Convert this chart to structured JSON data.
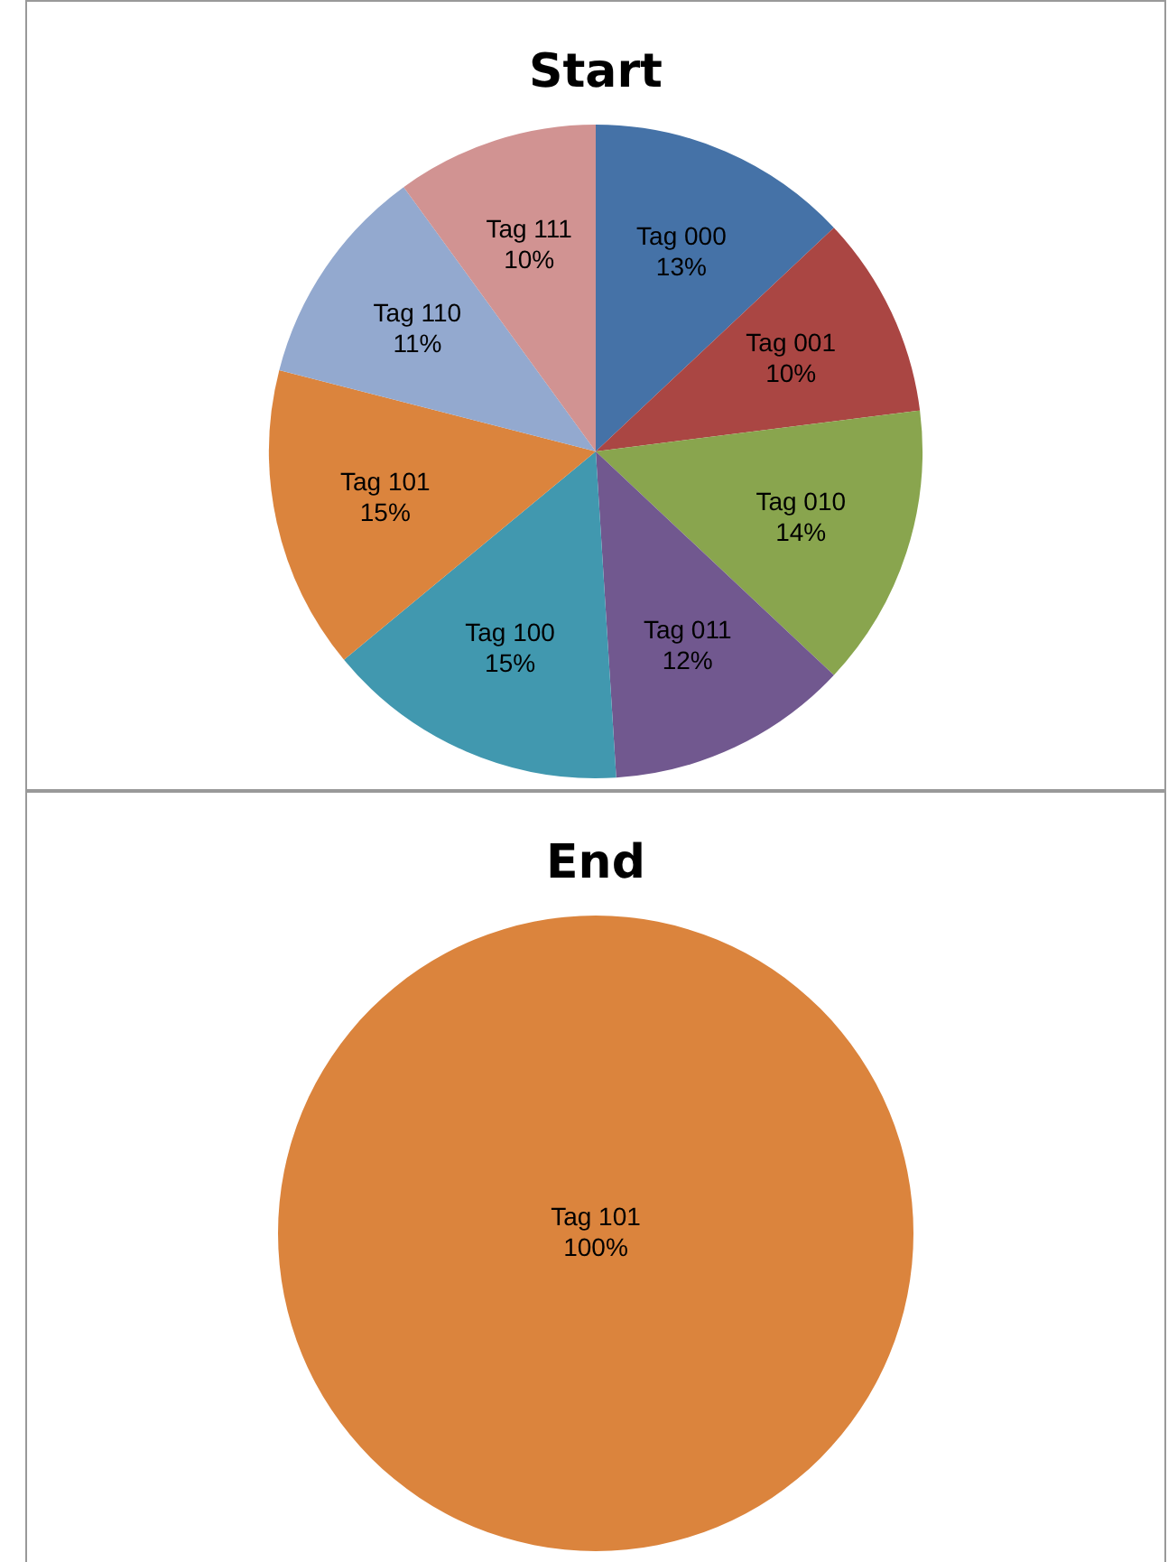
{
  "chart_data": [
    {
      "type": "pie",
      "title": "Start",
      "categories": [
        "Tag 000",
        "Tag 001",
        "Tag 010",
        "Tag 011",
        "Tag 100",
        "Tag 101",
        "Tag 110",
        "Tag 111"
      ],
      "values": [
        13,
        10,
        14,
        12,
        15,
        15,
        11,
        10
      ],
      "value_labels": [
        "13%",
        "10%",
        "14%",
        "12%",
        "15%",
        "15%",
        "11%",
        "10%"
      ],
      "colors": [
        "#4572a7",
        "#aa4643",
        "#89a54e",
        "#71588f",
        "#4198af",
        "#db843d",
        "#93a9cf",
        "#d19392"
      ],
      "legend": false
    },
    {
      "type": "pie",
      "title": "End",
      "categories": [
        "Tag 101"
      ],
      "values": [
        100
      ],
      "value_labels": [
        "100%"
      ],
      "colors": [
        "#db843d"
      ],
      "legend": false
    }
  ]
}
